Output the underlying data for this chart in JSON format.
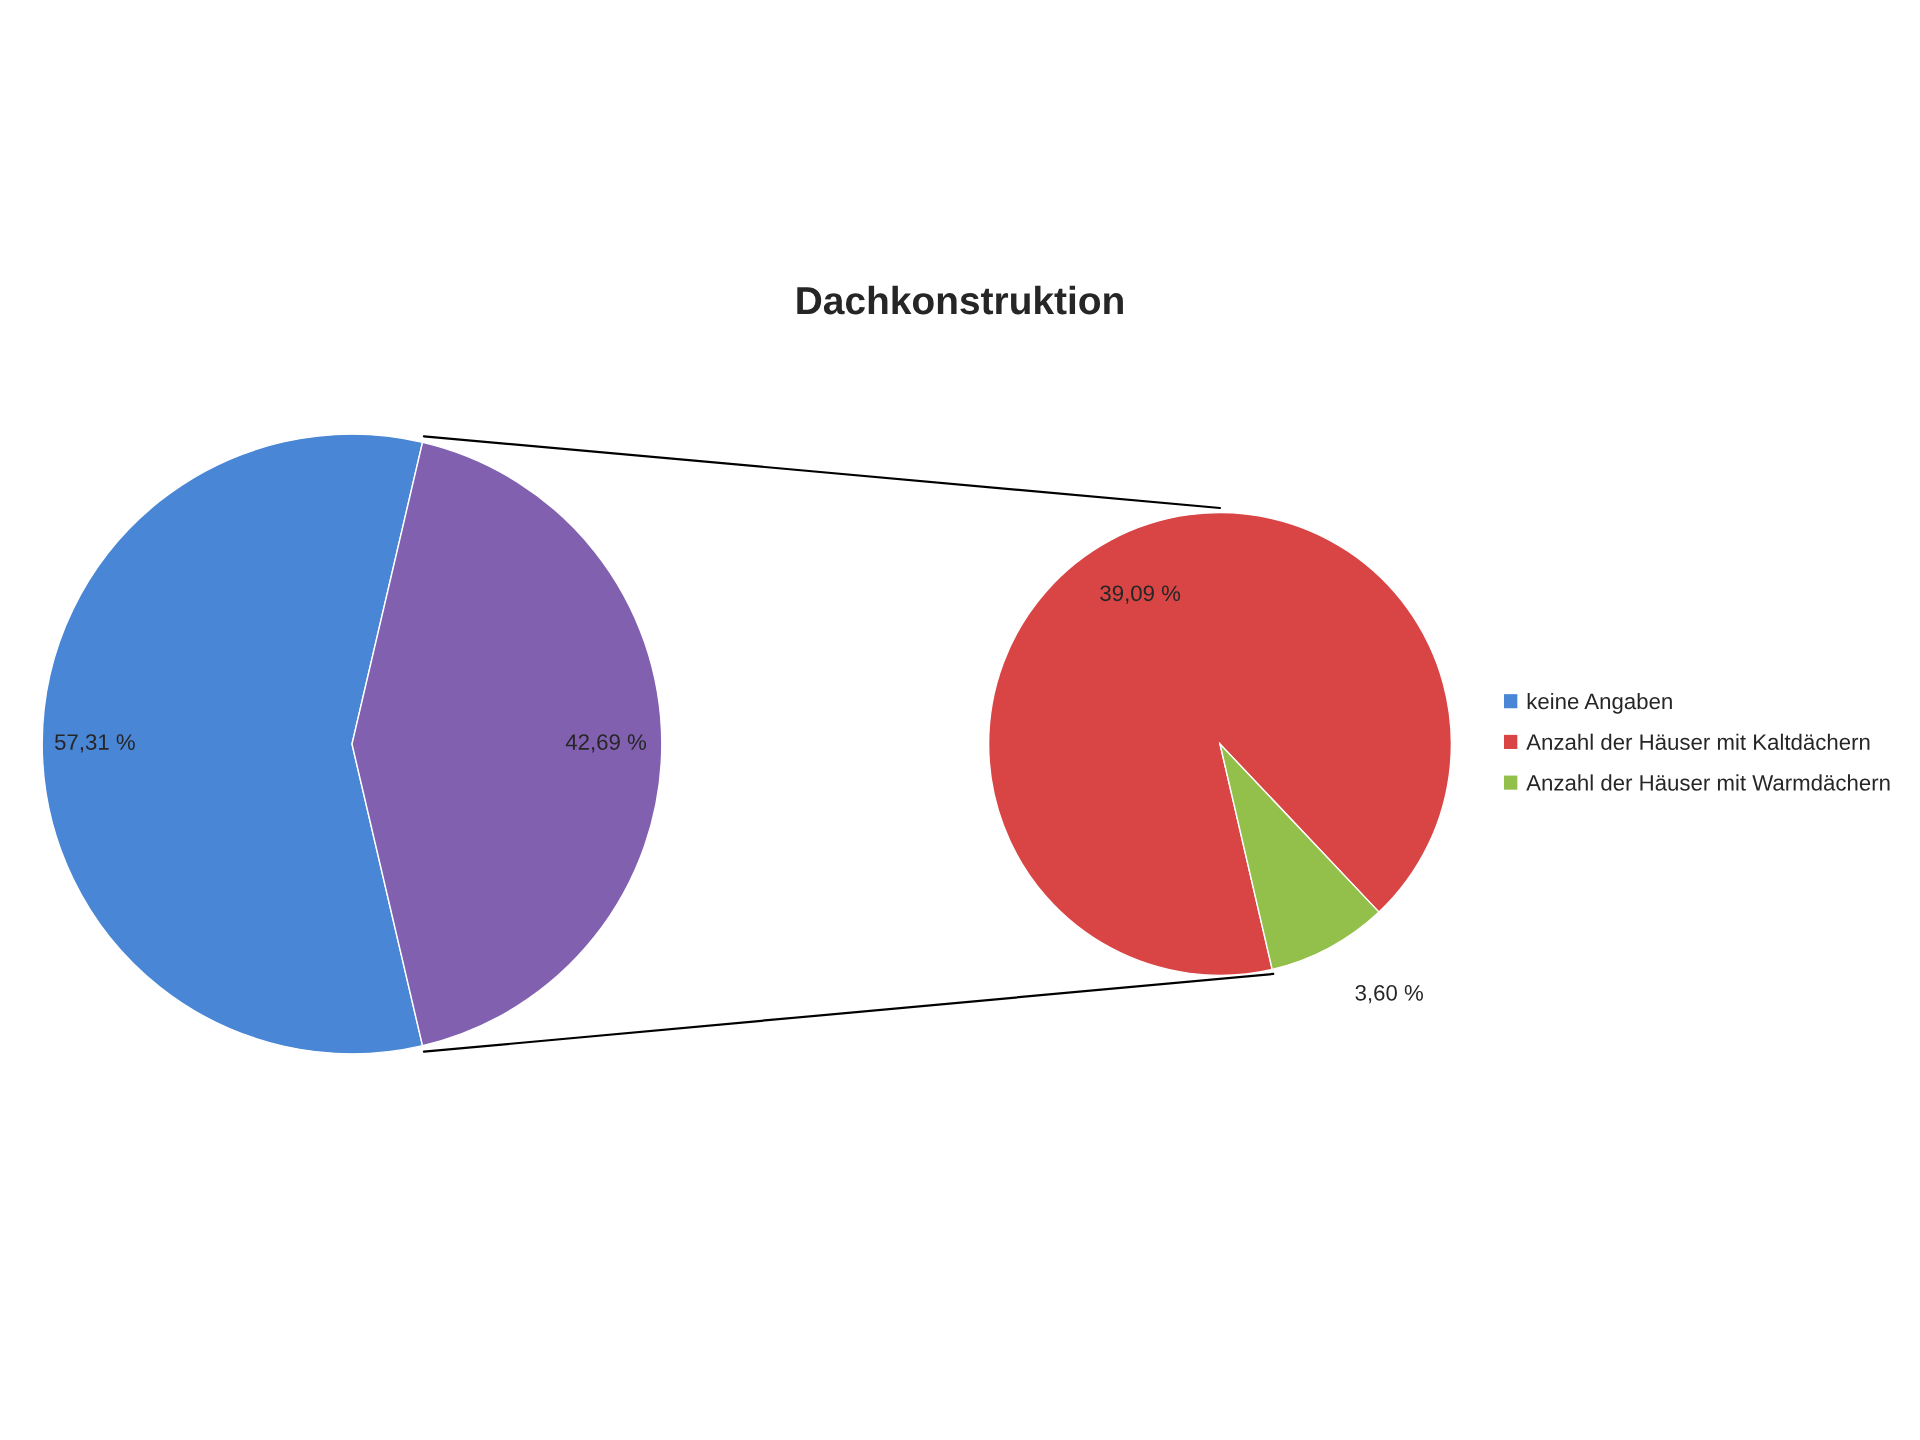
{
  "chart_data": [
    {
      "type": "pie",
      "title": "Dachkonstruktion",
      "categories": [
        "keine Angaben",
        null
      ],
      "values": [
        57.31,
        42.69
      ],
      "colors": [
        "#4a86d6",
        "#8260b0"
      ],
      "value_labels": [
        "57,31 %",
        "42,69 %"
      ]
    },
    {
      "type": "pie",
      "categories": [
        "Anzahl der Häuser mit Kaltdächern",
        "Anzahl der Häuser mit Warmdächern"
      ],
      "values": [
        39.09,
        3.6
      ],
      "colors": [
        "#d94545",
        "#92c04a"
      ],
      "value_labels": [
        "39,09 %",
        "3,60 %"
      ],
      "legend": "right"
    }
  ]
}
